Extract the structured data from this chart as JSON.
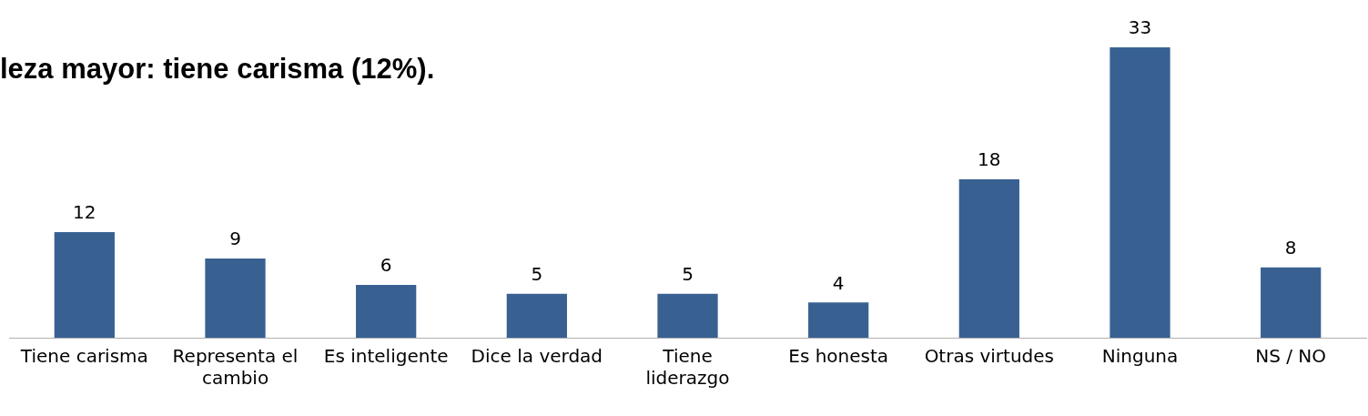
{
  "chart_data": {
    "type": "bar",
    "title": "leza mayor: tiene carisma (12%).",
    "categories": [
      "Tiene carisma",
      "Representa el cambio",
      "Es inteligente",
      "Dice la verdad",
      "Tiene liderazgo",
      "Es honesta",
      "Otras virtudes",
      "Ninguna",
      "NS / NO"
    ],
    "values": [
      12,
      9,
      6,
      5,
      5,
      4,
      18,
      33,
      8
    ],
    "color": "#386192",
    "tick_labels": "x",
    "data_labels": true,
    "grid": false,
    "legend": false
  }
}
